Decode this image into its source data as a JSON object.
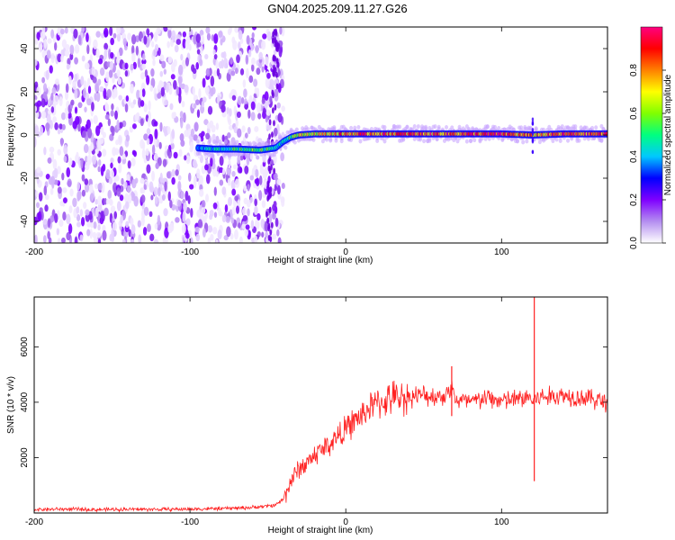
{
  "title": "GN04.2025.209.11.27.G26",
  "chart_data": [
    {
      "type": "heatmap",
      "xlabel": "Height of straight line (km)",
      "ylabel": "Frequency (Hz)",
      "xlim": [
        -200,
        168
      ],
      "ylim": [
        -50,
        50
      ],
      "x_ticks": [
        -200,
        -100,
        0,
        100
      ],
      "y_ticks": [
        -40,
        -20,
        0,
        20,
        40
      ],
      "colorbar": {
        "label": "Normalized spectral amplitude",
        "range": [
          0,
          1
        ],
        "ticks": [
          "0.0",
          "0.2",
          "0.4",
          "0.6",
          "0.8"
        ],
        "colors": [
          "#ffffff",
          "#b48ef0",
          "#7f00ff",
          "#0000ff",
          "#00c8ff",
          "#00ff80",
          "#80ff00",
          "#ffff00",
          "#ff8000",
          "#ff0000",
          "#ff0080"
        ]
      },
      "ridge": {
        "x": [
          -95,
          -85,
          -70,
          -55,
          -45,
          -40,
          -35,
          -30,
          -20,
          -10,
          0,
          20,
          60,
          100,
          120,
          140,
          168
        ],
        "freq_hz": [
          -6,
          -6.5,
          -6.5,
          -7,
          -6,
          -3,
          -1,
          0,
          0.5,
          0.5,
          0.5,
          0.5,
          0.5,
          0.5,
          0,
          0.5,
          0.5
        ],
        "amplitude": [
          0.4,
          0.45,
          0.55,
          0.6,
          0.5,
          0.5,
          0.6,
          0.7,
          0.75,
          0.8,
          0.85,
          0.9,
          0.9,
          0.95,
          0.8,
          0.9,
          0.9
        ]
      },
      "noise_region_x": [
        -200,
        -40
      ]
    },
    {
      "type": "line",
      "xlabel": "Height of straight line (km)",
      "ylabel": "SNR (10 * v/v)",
      "xlim": [
        -200,
        168
      ],
      "ylim": [
        0,
        7800
      ],
      "x_ticks": [
        -200,
        -100,
        0,
        100
      ],
      "y_ticks": [
        2000,
        4000,
        6000
      ],
      "color": "#ff2020",
      "series": [
        {
          "x": [
            -200,
            -180,
            -160,
            -140,
            -120,
            -100,
            -80,
            -60,
            -50,
            -45,
            -40,
            -35,
            -30,
            -25,
            -20,
            -15,
            -10,
            -5,
            0,
            5,
            10,
            15,
            20,
            25,
            30,
            40,
            50,
            60,
            65,
            68,
            70,
            80,
            90,
            100,
            110,
            118,
            120,
            122,
            130,
            140,
            150,
            160,
            168
          ],
          "y": [
            130,
            140,
            120,
            135,
            130,
            140,
            160,
            200,
            250,
            300,
            500,
            1200,
            1600,
            1800,
            2100,
            2300,
            2500,
            2800,
            3000,
            3300,
            3500,
            3800,
            3950,
            4050,
            4150,
            4200,
            4250,
            4200,
            4300,
            4600,
            4100,
            4000,
            4150,
            4050,
            4100,
            4200,
            4000,
            4150,
            4200,
            4250,
            4200,
            4100,
            4000
          ]
        }
      ],
      "spikes": [
        {
          "x": 68,
          "min": 3500,
          "max": 5300
        },
        {
          "x": 121,
          "min": 1150,
          "max": 7800
        }
      ]
    }
  ]
}
